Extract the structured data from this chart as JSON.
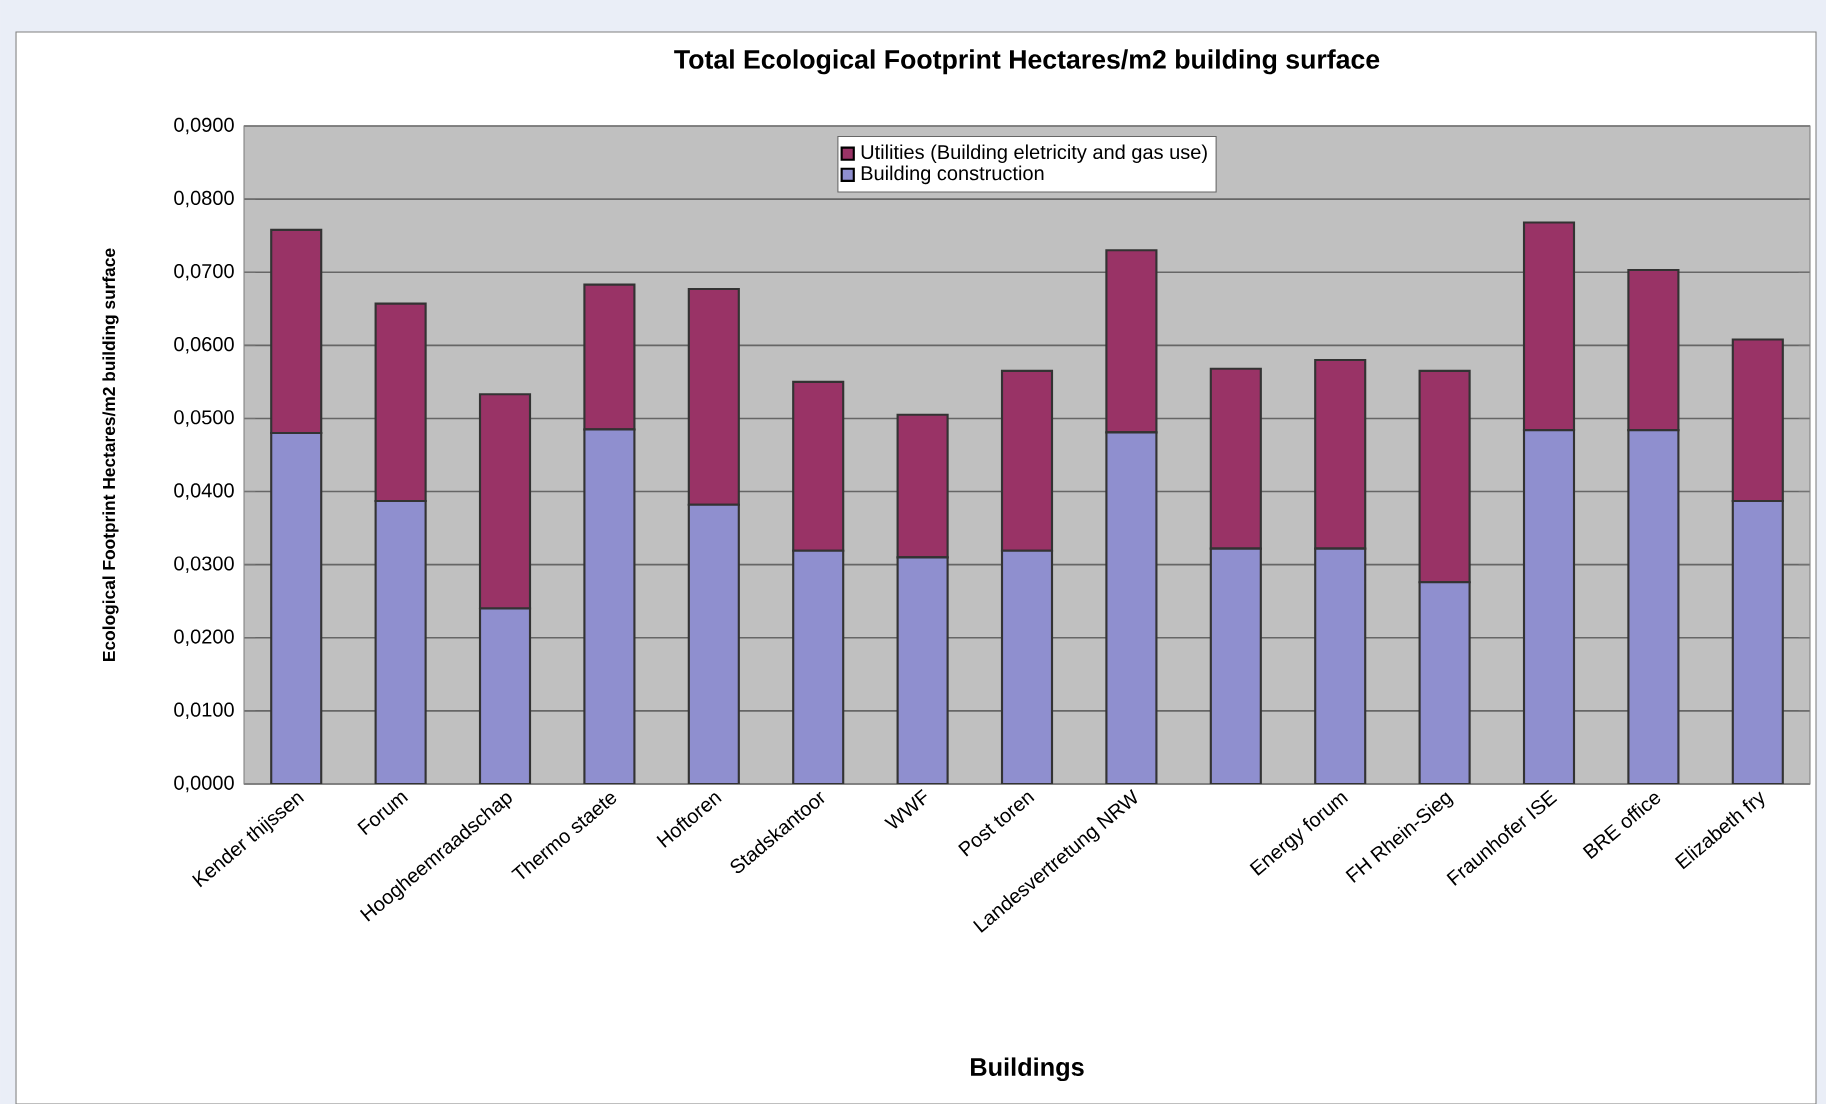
{
  "chart_data": {
    "type": "bar",
    "stacked": true,
    "title": "Total Ecological Footprint Hectares/m2 building surface",
    "xlabel": "Buildings",
    "ylabel": "Ecological Footprint Hectares/m2 building surface",
    "categories": [
      "Kender thijssen",
      "Forum",
      "Hoogheemraadschap",
      "Thermo staete",
      "Hoftoren",
      "Stadskantoor",
      "WWF",
      "Post toren",
      "Landesvertretung NRW",
      null,
      "Energy forum",
      "FH Rhein-Sieg",
      "Fraunhofer ISE",
      "BRE office",
      "Elizabeth fry"
    ],
    "series": [
      {
        "name": "Building construction",
        "color": "#8f8fcf",
        "values": [
          0.048,
          0.0387,
          0.024,
          0.0485,
          0.0382,
          0.0319,
          0.031,
          0.0319,
          0.0481,
          0.0322,
          0.0322,
          0.0276,
          0.0484,
          0.0484,
          0.0387
        ]
      },
      {
        "name": "Utilities (Building eletricity and gas use)",
        "color": "#993366",
        "values": [
          0.0278,
          0.027,
          0.0293,
          0.0198,
          0.0295,
          0.0231,
          0.0195,
          0.0246,
          0.0249,
          0.0246,
          0.0258,
          0.0289,
          0.0284,
          0.0219,
          0.0221
        ]
      }
    ],
    "ylim": [
      0,
      0.09
    ],
    "yticks": [
      {
        "value": 0,
        "label": "0,0000"
      },
      {
        "value": 0.01,
        "label": "0,0100"
      },
      {
        "value": 0.02,
        "label": "0,0200"
      },
      {
        "value": 0.03,
        "label": "0,0300"
      },
      {
        "value": 0.04,
        "label": "0,0400"
      },
      {
        "value": 0.05,
        "label": "0,0500"
      },
      {
        "value": 0.06,
        "label": "0,0600"
      },
      {
        "value": 0.07,
        "label": "0,0700"
      },
      {
        "value": 0.08,
        "label": "0,0800"
      },
      {
        "value": 0.09,
        "label": "0,0900"
      }
    ],
    "grid": "y",
    "legend": "top"
  }
}
